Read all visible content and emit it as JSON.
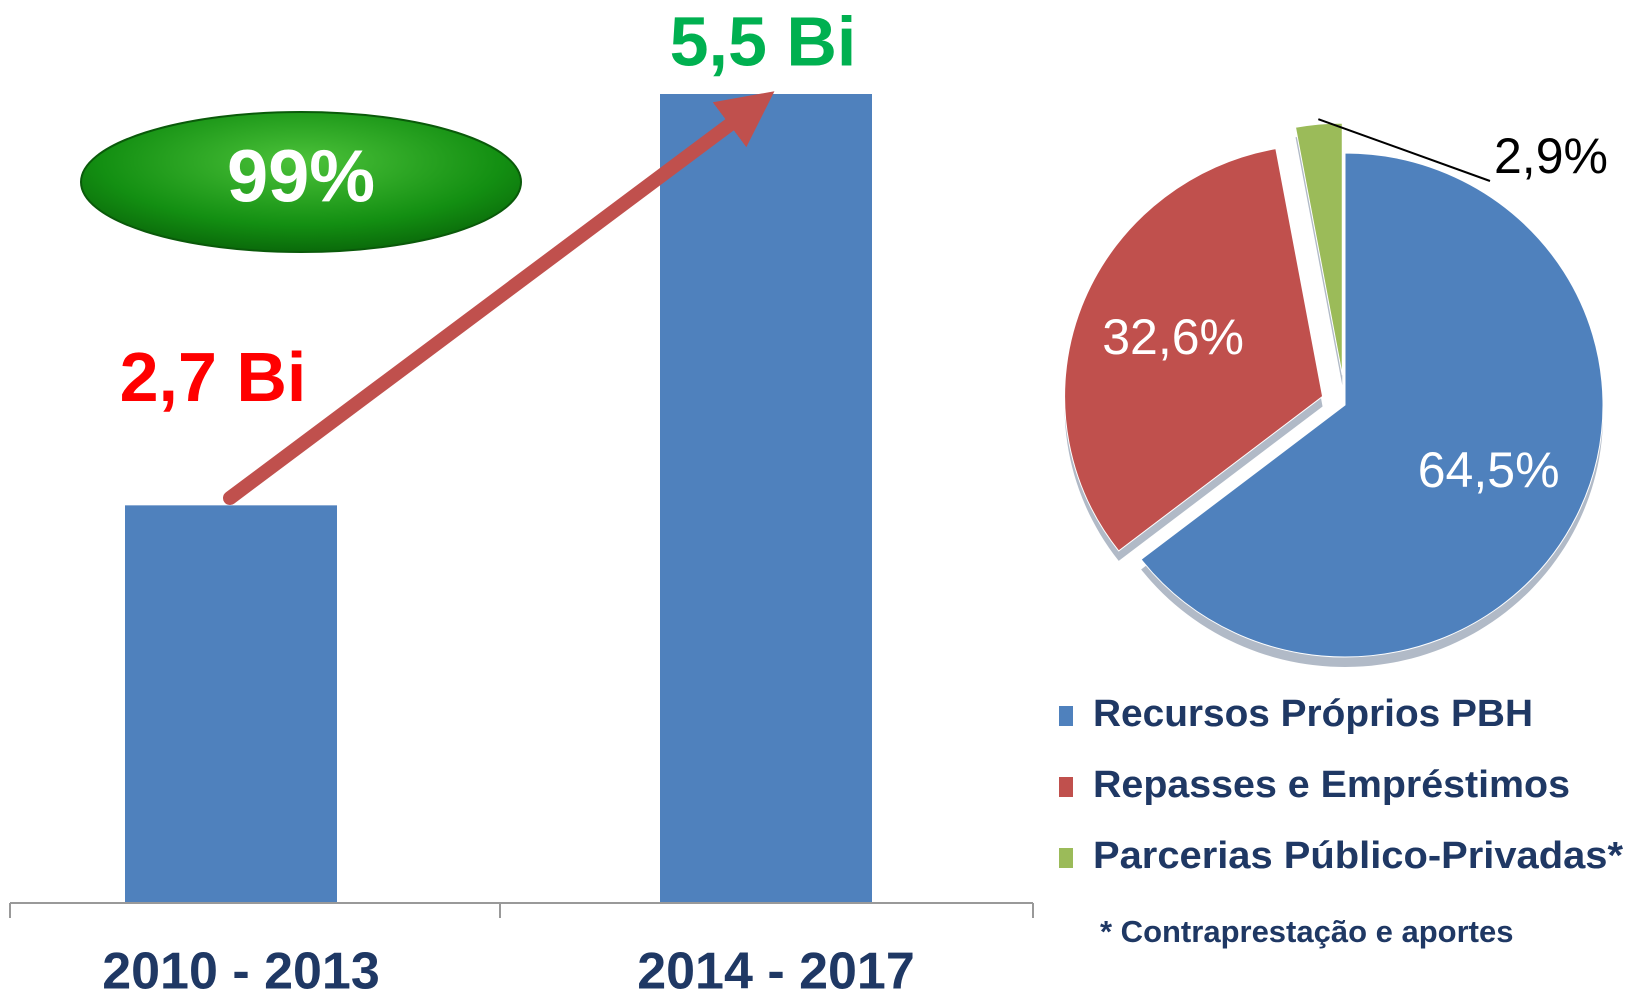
{
  "chart_data": [
    {
      "type": "bar",
      "categories": [
        "2010 - 2013",
        "2014 - 2017"
      ],
      "values": [
        2.7,
        5.5
      ],
      "value_labels": [
        "2,7 Bi",
        "5,5 Bi"
      ],
      "color": "#4f81bd",
      "value_label_colors": [
        "#ff0000",
        "#00b050"
      ],
      "annotation": "99%"
    },
    {
      "type": "pie",
      "categories": [
        "Recursos Próprios PBH",
        "Repasses e Empréstimos",
        "Parcerias Público-Privadas*"
      ],
      "values": [
        64.5,
        32.6,
        2.9
      ],
      "value_labels": [
        "64,5%",
        "32,6%",
        "2,9%"
      ],
      "colors": [
        "#4f81bd",
        "#c0504d",
        "#9bbb59"
      ],
      "note": "* Contraprestação e aportes"
    }
  ]
}
